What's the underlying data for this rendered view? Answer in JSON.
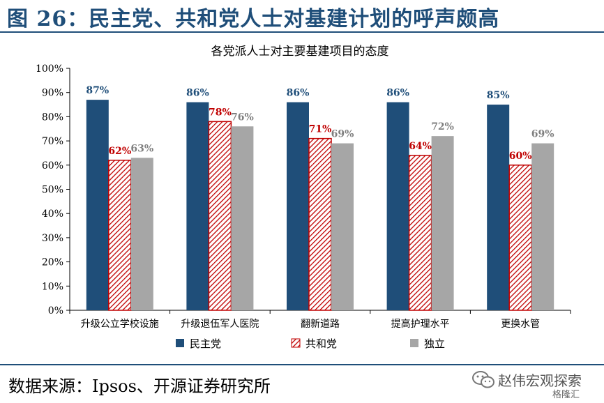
{
  "figure": {
    "title": "图 26：民主党、共和党人士对基建计划的呼声颇高",
    "source": "数据来源：Ipsos、开源证券研究所"
  },
  "watermark": {
    "text": "赵伟宏观探索",
    "sub": "格隆汇"
  },
  "colors": {
    "democrat": "#1f4e79",
    "republican": "#c00000",
    "independent": "#a6a6a6",
    "title": "#1f4e79"
  },
  "chart_data": {
    "type": "bar",
    "title": "各党派人士对主要基建项目的态度",
    "categories": [
      "升级公立学校设施",
      "升级退伍军人医院",
      "翻新道路",
      "提高护理水平",
      "更换水管"
    ],
    "series": [
      {
        "name": "民主党",
        "values": [
          87,
          86,
          86,
          86,
          85
        ],
        "labels": [
          "87%",
          "86%",
          "86%",
          "86%",
          "85%"
        ]
      },
      {
        "name": "共和党",
        "values": [
          62,
          78,
          71,
          64,
          60
        ],
        "labels": [
          "62%",
          "78%",
          "71%",
          "64%",
          "60%"
        ]
      },
      {
        "name": "独立",
        "values": [
          63,
          76,
          69,
          72,
          69
        ],
        "labels": [
          "63%",
          "76%",
          "69%",
          "72%",
          "69%"
        ]
      }
    ],
    "ylim": [
      0,
      100
    ],
    "yticks": [
      "0%",
      "10%",
      "20%",
      "30%",
      "40%",
      "50%",
      "60%",
      "70%",
      "80%",
      "90%",
      "100%"
    ],
    "grid": false,
    "legend_position": "bottom"
  }
}
